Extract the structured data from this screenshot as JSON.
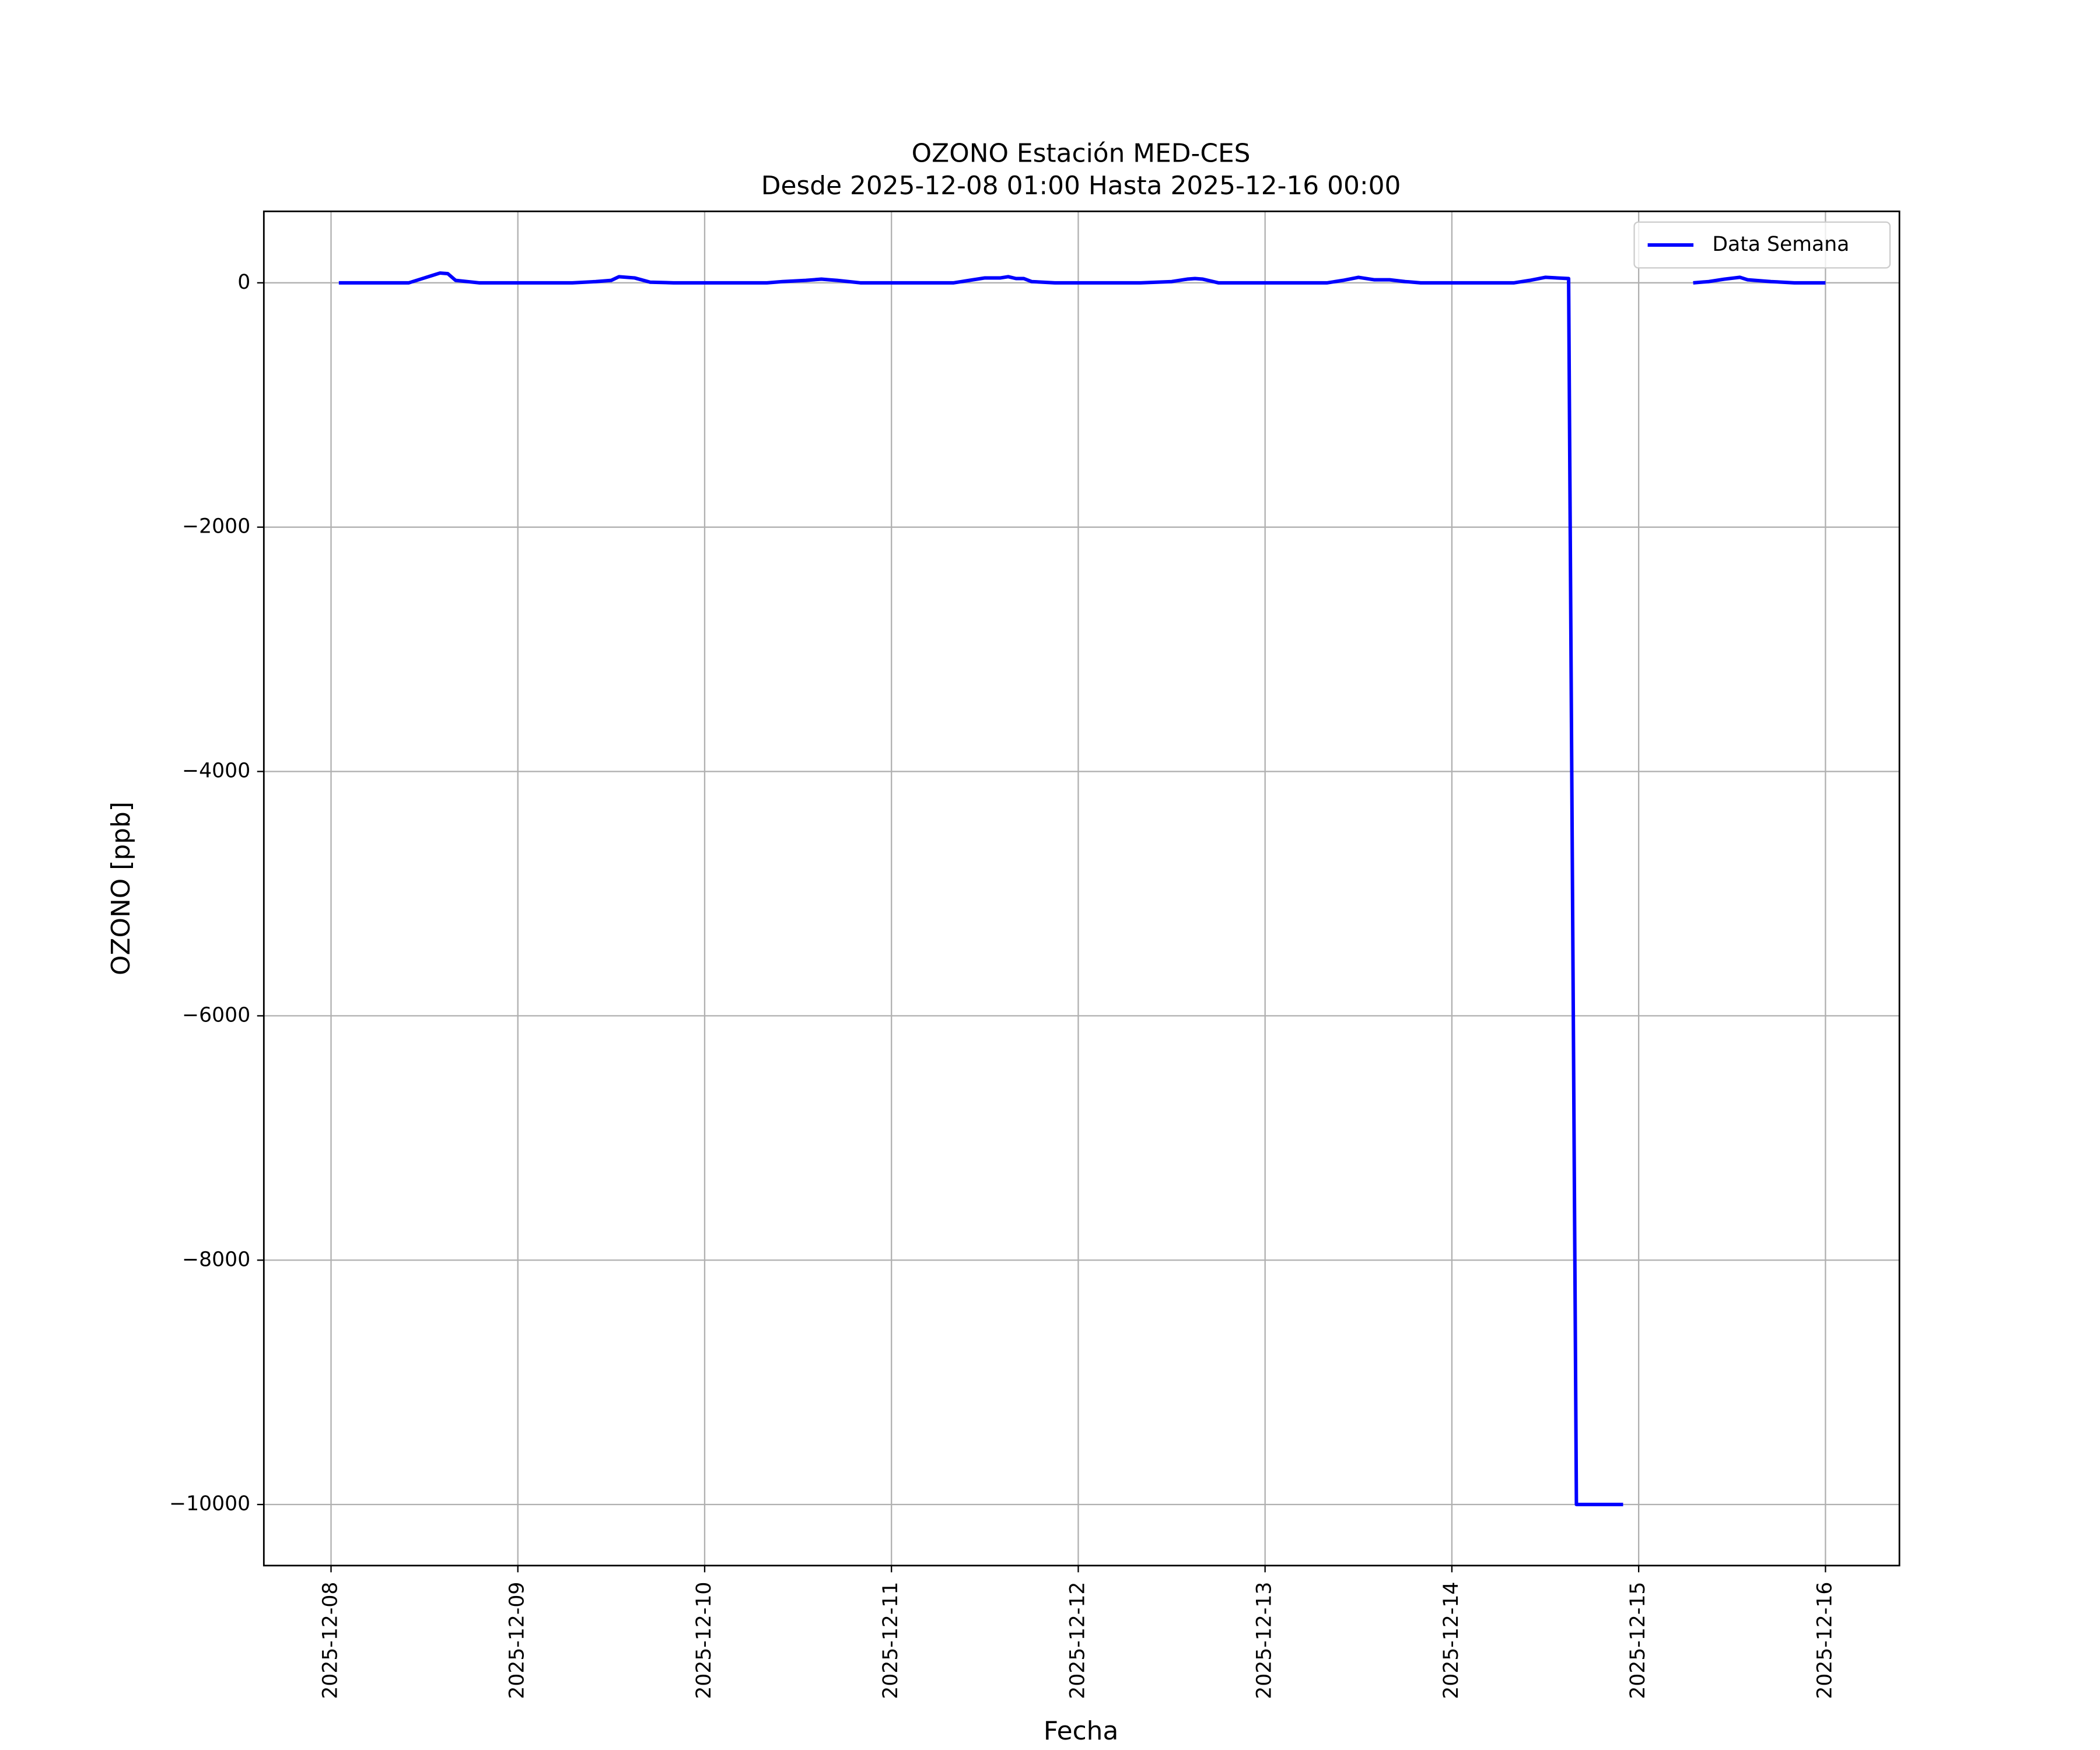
{
  "chart_data": {
    "type": "line",
    "title": "OZONO Estación MED-CES",
    "subtitle": "Desde 2025-12-08 01:00 Hasta 2025-12-16 00:00",
    "xlabel": "Fecha",
    "ylabel": "OZONO [ppb]",
    "x": [
      "2025-12-08 01:00",
      "2025-12-08 04:00",
      "2025-12-08 07:00",
      "2025-12-08 10:00",
      "2025-12-08 12:00",
      "2025-12-08 13:00",
      "2025-12-08 14:00",
      "2025-12-08 15:00",
      "2025-12-08 16:00",
      "2025-12-08 19:00",
      "2025-12-08 22:00",
      "2025-12-09 01:00",
      "2025-12-09 04:00",
      "2025-12-09 07:00",
      "2025-12-09 10:00",
      "2025-12-09 12:00",
      "2025-12-09 13:00",
      "2025-12-09 15:00",
      "2025-12-09 17:00",
      "2025-12-09 20:00",
      "2025-12-09 23:00",
      "2025-12-10 02:00",
      "2025-12-10 05:00",
      "2025-12-10 08:00",
      "2025-12-10 10:00",
      "2025-12-10 13:00",
      "2025-12-10 15:00",
      "2025-12-10 16:00",
      "2025-12-10 17:00",
      "2025-12-10 20:00",
      "2025-12-10 23:00",
      "2025-12-11 02:00",
      "2025-12-11 05:00",
      "2025-12-11 08:00",
      "2025-12-11 10:00",
      "2025-12-11 12:00",
      "2025-12-11 14:00",
      "2025-12-11 15:00",
      "2025-12-11 16:00",
      "2025-12-11 17:00",
      "2025-12-11 18:00",
      "2025-12-11 21:00",
      "2025-12-12 00:00",
      "2025-12-12 04:00",
      "2025-12-12 08:00",
      "2025-12-12 12:00",
      "2025-12-12 14:00",
      "2025-12-12 15:00",
      "2025-12-12 16:00",
      "2025-12-12 18:00",
      "2025-12-12 21:00",
      "2025-12-13 00:00",
      "2025-12-13 04:00",
      "2025-12-13 08:00",
      "2025-12-13 10:00",
      "2025-12-13 12:00",
      "2025-12-13 14:00",
      "2025-12-13 16:00",
      "2025-12-13 18:00",
      "2025-12-13 20:00",
      "2025-12-14 00:00",
      "2025-12-14 04:00",
      "2025-12-14 08:00",
      "2025-12-14 10:00",
      "2025-12-14 12:00",
      "2025-12-14 15:00",
      "2025-12-14 16:00",
      "2025-12-14 22:00",
      "2025-12-15 03:00",
      "2025-12-15 07:00",
      "2025-12-15 09:00",
      "2025-12-15 11:00",
      "2025-12-15 13:00",
      "2025-12-15 14:00",
      "2025-12-15 17:00",
      "2025-12-15 20:00",
      "2025-12-15 23:00",
      "2025-12-16 00:00"
    ],
    "series": [
      {
        "name": "Data Semana",
        "color": "#0000ff",
        "values": [
          0,
          0,
          0,
          0,
          40,
          60,
          80,
          75,
          20,
          0,
          0,
          0,
          0,
          0,
          10,
          20,
          50,
          40,
          5,
          0,
          0,
          0,
          0,
          0,
          10,
          20,
          30,
          25,
          20,
          0,
          0,
          0,
          0,
          0,
          20,
          40,
          40,
          50,
          35,
          35,
          10,
          0,
          0,
          0,
          0,
          10,
          30,
          35,
          30,
          0,
          0,
          0,
          0,
          0,
          20,
          45,
          25,
          25,
          10,
          0,
          0,
          0,
          0,
          20,
          45,
          35,
          -10000,
          -10000,
          null,
          0,
          10,
          30,
          45,
          25,
          10,
          0,
          0,
          0
        ]
      }
    ],
    "xlim": [
      "2025-12-07 15:22",
      "2025-12-16 09:30"
    ],
    "xticks": [
      "2025-12-08",
      "2025-12-09",
      "2025-12-10",
      "2025-12-11",
      "2025-12-12",
      "2025-12-13",
      "2025-12-14",
      "2025-12-15",
      "2025-12-16"
    ],
    "ylim": [
      -10500,
      585
    ],
    "yticks": [
      {
        "value": -10000,
        "label": "−10000"
      },
      {
        "value": -8000,
        "label": "−8000"
      },
      {
        "value": -6000,
        "label": "−6000"
      },
      {
        "value": -4000,
        "label": "−4000"
      },
      {
        "value": -2000,
        "label": "−2000"
      },
      0
    ],
    "grid": true,
    "legend": "upper right"
  }
}
